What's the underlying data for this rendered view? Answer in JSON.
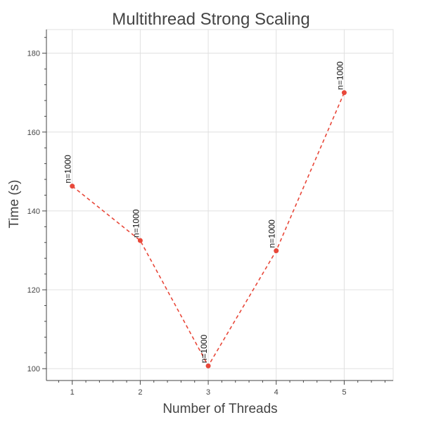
{
  "chart_data": {
    "type": "line",
    "title": "Multithread Strong Scaling",
    "xlabel": "Number of Threads",
    "ylabel": "Time (s)",
    "xlim": [
      0.62,
      5.72
    ],
    "ylim": [
      97,
      186
    ],
    "xticks": [
      1,
      2,
      3,
      4,
      5
    ],
    "yticks": [
      100,
      120,
      140,
      160,
      180
    ],
    "xtick_labels": [
      "1",
      "2",
      "3",
      "4",
      "5"
    ],
    "ytick_labels": [
      "100",
      "120",
      "140",
      "160",
      "180"
    ],
    "grid": true,
    "line_style": "dashed",
    "color": "#e8483a",
    "points": [
      {
        "x": 1,
        "y": 146.3,
        "label": "n=1000"
      },
      {
        "x": 2,
        "y": 132.5,
        "label": "n=1000"
      },
      {
        "x": 3,
        "y": 100.7,
        "label": "n=1000"
      },
      {
        "x": 4,
        "y": 129.9,
        "label": "n=1000"
      },
      {
        "x": 5,
        "y": 170.0,
        "label": "n=1000"
      }
    ]
  }
}
